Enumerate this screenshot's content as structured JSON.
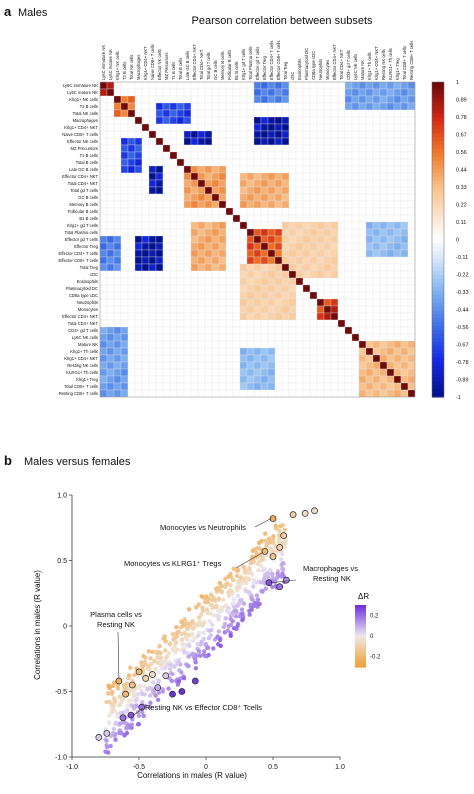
{
  "panel_a": {
    "letter": "a",
    "title": "Males"
  },
  "panel_b": {
    "letter": "b",
    "title": "Males versus females"
  },
  "chart_data": [
    {
      "type": "heatmap",
      "title": "Pearson correlation between subsets",
      "labels": [
        "Ly6C immature NK",
        "Ly6C mature NK",
        "Klrg1+ NK cells",
        "T2 B cells",
        "Total NK cells",
        "Macrophages",
        "Klrg1+ CD4+ NKT",
        "Naive CD8+ T cells",
        "Effector NK cells",
        "MZ Precursors",
        "T1 B cells",
        "Total B cells",
        "Late GC B cells",
        "Effector CD4+ NKT",
        "Total CD4+ NKT",
        "Total gd T cells",
        "GC B cells",
        "Memory B cells",
        "Follicular B cells",
        "B1 B cells",
        "Klrg1+ gd T cells",
        "Total Plasma cells",
        "Effector gd T cells",
        "Effector Treg",
        "Effector CD4+ T cells",
        "Effector CD8+ T cells",
        "Total Treg",
        "cDC",
        "Eosinophils",
        "Plasmacytoid DC",
        "CD8a type cDC",
        "Neutrophils",
        "Monocytes",
        "Effector CD4+ NKT",
        "Total CD4+ NKT",
        "CD3+ gd T cells",
        "Ly6C NK cells",
        "Mature NK",
        "Klrg1+ Th cells",
        "Klrg1+ CD4+ NKT",
        "Resting NK cells",
        "KLRG1+ Th cells",
        "Klrg1+ Treg",
        "Total CD8+ T cells",
        "Resting CD8+ T cells"
      ],
      "colorbar_ticks": [
        "1",
        "0.89",
        "0.78",
        "0.67",
        "0.56",
        "0.44",
        "0.33",
        "0.22",
        "0.11",
        "0",
        "-0.11",
        "-0.22",
        "-0.33",
        "-0.44",
        "-0.56",
        "-0.67",
        "-0.78",
        "-0.89",
        "-1"
      ],
      "scale": [
        -1,
        1
      ],
      "blocks": [
        {
          "rows": [
            0,
            1
          ],
          "cols": [
            0,
            1
          ],
          "r": 0.85
        },
        {
          "rows": [
            2,
            4
          ],
          "cols": [
            2,
            4
          ],
          "r": 0.6
        },
        {
          "rows": [
            7,
            8
          ],
          "cols": [
            12,
            15
          ],
          "r": -0.95
        },
        {
          "rows": [
            12,
            17
          ],
          "cols": [
            12,
            17
          ],
          "r": 0.45
        },
        {
          "rows": [
            13,
            17
          ],
          "cols": [
            20,
            26
          ],
          "r": 0.4
        },
        {
          "rows": [
            21,
            26
          ],
          "cols": [
            21,
            26
          ],
          "r": 0.65
        },
        {
          "rows": [
            22,
            26
          ],
          "cols": [
            5,
            8
          ],
          "r": -0.95
        },
        {
          "rows": [
            22,
            26
          ],
          "cols": [
            0,
            2
          ],
          "r": -0.5
        },
        {
          "rows": [
            31,
            33
          ],
          "cols": [
            31,
            33
          ],
          "r": 0.75
        },
        {
          "rows": [
            8,
            12
          ],
          "cols": [
            3,
            5
          ],
          "r": -0.7
        },
        {
          "rows": [
            0,
            3
          ],
          "cols": [
            35,
            44
          ],
          "r": -0.4
        },
        {
          "rows": [
            37,
            44
          ],
          "cols": [
            37,
            44
          ],
          "r": 0.35
        },
        {
          "rows": [
            38,
            43
          ],
          "cols": [
            20,
            24
          ],
          "r": -0.3
        },
        {
          "rows": [
            26,
            33
          ],
          "cols": [
            20,
            27
          ],
          "r": 0.25
        }
      ]
    },
    {
      "type": "scatter",
      "xlabel": "Correlations in males (R value)",
      "ylabel": "Correlations in males (R value)",
      "xlim": [
        -1.0,
        1.0
      ],
      "ylim": [
        -1.0,
        1.0
      ],
      "xticks": [
        "-1.0",
        "-0.5",
        "0",
        "0.5",
        "1.0"
      ],
      "yticks": [
        "1.0",
        "0.5",
        "0",
        "-0.5",
        "-1.0"
      ],
      "legend": {
        "title": "ΔR",
        "ticks": [
          "0.2",
          "0",
          "-0.2"
        ],
        "range": [
          -0.3,
          0.3
        ]
      },
      "annotations": [
        {
          "text": "Monocytes vs Neutrophils",
          "x": 0.5,
          "y": 0.82
        },
        {
          "text": "Monocytes vs KLRG1⁺ Tregs",
          "x": 0.44,
          "y": 0.57
        },
        {
          "text": "Macrophages vs",
          "x": 0.46,
          "y": 0.33
        },
        {
          "text": "Resting NK",
          "x": 0.46,
          "y": 0.33
        },
        {
          "text": "Plasma cells vs",
          "x": -0.65,
          "y": -0.42
        },
        {
          "text": "Resting NK",
          "x": -0.65,
          "y": -0.42
        },
        {
          "text": "Resting NK vs Effector CD8⁺ Tcells",
          "x": -0.56,
          "y": -0.68
        }
      ],
      "highlight": [
        {
          "x": 0.5,
          "y": 0.82,
          "d": -0.25
        },
        {
          "x": 0.65,
          "y": 0.85,
          "d": -0.1
        },
        {
          "x": 0.74,
          "y": 0.86,
          "d": -0.05
        },
        {
          "x": 0.81,
          "y": 0.88,
          "d": -0.05
        },
        {
          "x": 0.58,
          "y": 0.69,
          "d": -0.1
        },
        {
          "x": 0.44,
          "y": 0.57,
          "d": -0.2
        },
        {
          "x": 0.5,
          "y": 0.53,
          "d": -0.15
        },
        {
          "x": 0.55,
          "y": 0.6,
          "d": -0.1
        },
        {
          "x": 0.47,
          "y": 0.33,
          "d": 0.25
        },
        {
          "x": 0.55,
          "y": 0.3,
          "d": 0.2
        },
        {
          "x": 0.6,
          "y": 0.35,
          "d": 0.15
        },
        {
          "x": -0.65,
          "y": -0.42,
          "d": -0.25
        },
        {
          "x": -0.6,
          "y": -0.52,
          "d": -0.2
        },
        {
          "x": -0.55,
          "y": -0.45,
          "d": -0.15
        },
        {
          "x": -0.5,
          "y": -0.35,
          "d": -0.2
        },
        {
          "x": -0.45,
          "y": -0.4,
          "d": -0.1
        },
        {
          "x": -0.4,
          "y": -0.37,
          "d": -0.05
        },
        {
          "x": -0.36,
          "y": -0.47,
          "d": 0.1
        },
        {
          "x": -0.3,
          "y": -0.38,
          "d": 0.05
        },
        {
          "x": -0.56,
          "y": -0.68,
          "d": 0.25
        },
        {
          "x": -0.62,
          "y": -0.7,
          "d": 0.2
        },
        {
          "x": -0.48,
          "y": -0.62,
          "d": 0.2
        },
        {
          "x": -0.8,
          "y": -0.85,
          "d": 0.05
        },
        {
          "x": -0.74,
          "y": -0.82,
          "d": 0.05
        },
        {
          "x": -0.25,
          "y": -0.52,
          "d": 0.3
        },
        {
          "x": -0.18,
          "y": -0.5,
          "d": 0.3
        },
        {
          "x": -0.08,
          "y": -0.42,
          "d": 0.28
        }
      ]
    }
  ]
}
